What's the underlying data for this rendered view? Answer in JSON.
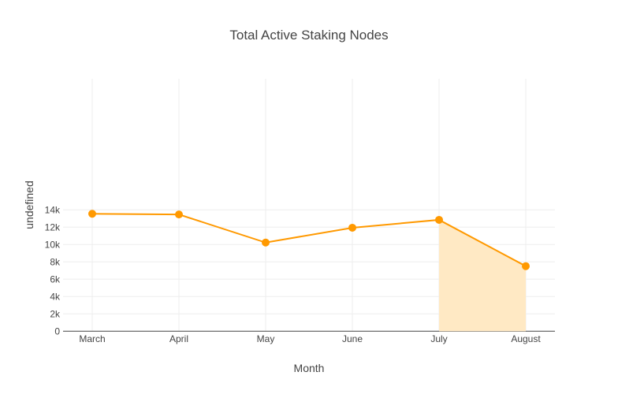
{
  "chart_data": {
    "type": "line",
    "title": "Total Active Staking Nodes",
    "xlabel": "Month",
    "ylabel": "undefined",
    "categories": [
      "March",
      "April",
      "May",
      "June",
      "July",
      "August"
    ],
    "values": [
      13550,
      13470,
      10230,
      11940,
      12850,
      7510
    ],
    "ylim": [
      0,
      14500
    ],
    "yticks": [
      0,
      2000,
      4000,
      6000,
      8000,
      10000,
      12000,
      14000
    ],
    "ytick_labels": [
      "0",
      "2k",
      "4k",
      "6k",
      "8k",
      "10k",
      "12k",
      "14k"
    ],
    "grid": true,
    "highlight_fill": {
      "from": "July",
      "to": "August"
    },
    "colors": {
      "line": "#ff9900",
      "fill": "#ffe9c4",
      "grid": "#eeeeee"
    }
  }
}
